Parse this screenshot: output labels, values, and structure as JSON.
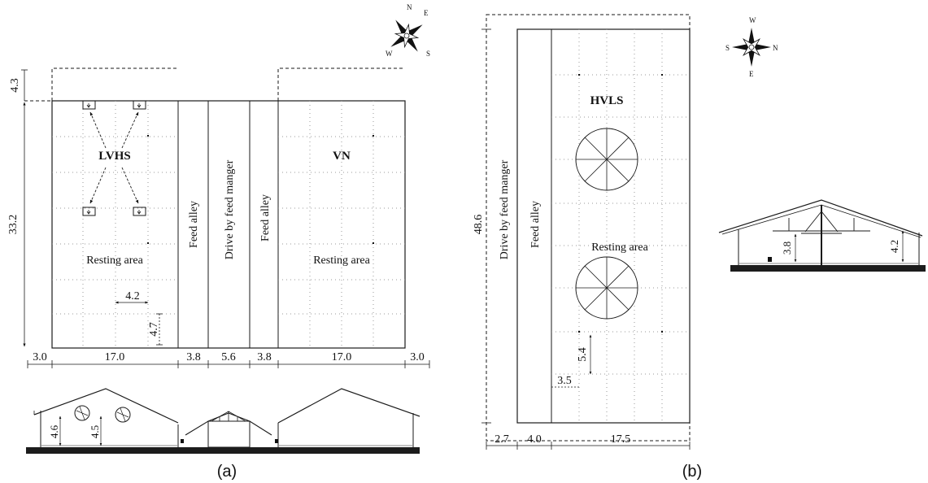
{
  "panel_a": {
    "caption": "(a)",
    "zones": {
      "lvhs": "LVHS",
      "vn": "VN",
      "resting_left": "Resting area",
      "resting_right": "Resting area",
      "feed_alley_left": "Feed alley",
      "drive_lane": "Drive by feed manger",
      "feed_alley_right": "Feed alley"
    },
    "dimensions": {
      "top_offset": "4.3",
      "length": "33.2",
      "fan_spacing_x": "4.2",
      "fan_spacing_y": "4.7",
      "bottom": [
        "3.0",
        "17.0",
        "3.8",
        "5.6",
        "3.8",
        "17.0",
        "3.0"
      ]
    },
    "section": {
      "height_left": "4.6",
      "height_mid": "4.5"
    },
    "compass": {
      "n": "N",
      "e": "E",
      "w": "W",
      "s": "S"
    }
  },
  "panel_b": {
    "caption": "(b)",
    "zones": {
      "hvls": "HVLS",
      "resting": "Resting area",
      "feed_alley": "Feed alley",
      "drive_lane": "Drive by feed manger"
    },
    "dimensions": {
      "length": "48.6",
      "fan_spacing_y": "5.4",
      "fan_spacing_x": "3.5",
      "bottom": [
        "2.7",
        "4.0",
        "17.5"
      ]
    },
    "section": {
      "height_left": "3.8",
      "height_right": "4.2"
    },
    "compass": {
      "w": "W",
      "s": "S",
      "n": "N",
      "e": "E"
    }
  },
  "colors": {
    "line": "#1a1a1a",
    "grid": "#9a9a9a",
    "ground": "#1c1c1c"
  }
}
